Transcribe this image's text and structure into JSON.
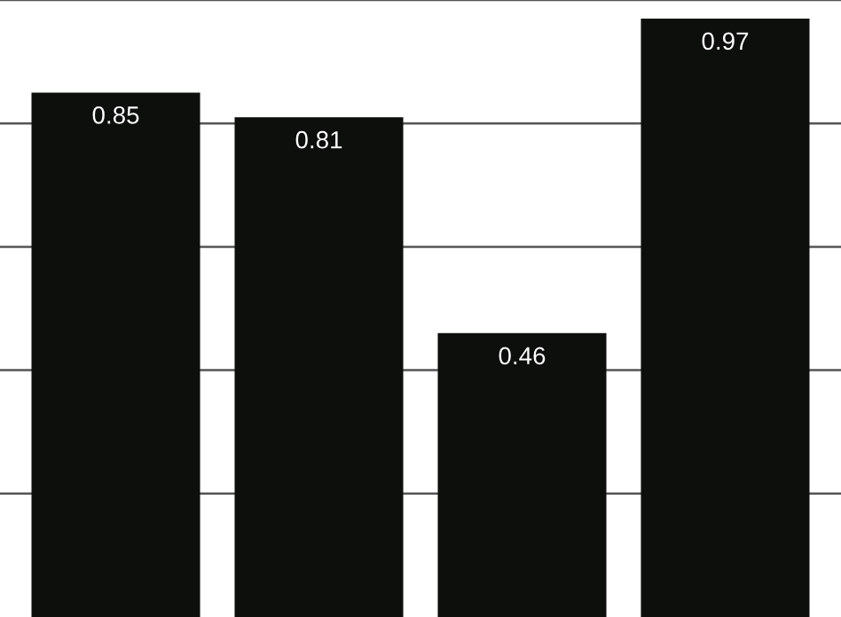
{
  "chart_data": {
    "type": "bar",
    "categories": [
      null,
      null,
      null,
      null
    ],
    "values": [
      0.85,
      0.81,
      0.46,
      0.97
    ],
    "color": "#0d0f0d",
    "ylim": [
      0,
      1.0
    ],
    "yticks": [
      {
        "value": 0.2,
        "label": null
      },
      {
        "value": 0.4,
        "label": null
      },
      {
        "value": 0.6,
        "label": null
      },
      {
        "value": 0.8,
        "label": null
      },
      {
        "value": 1.0,
        "label": null
      }
    ],
    "grid": "y",
    "data_labels": true
  }
}
